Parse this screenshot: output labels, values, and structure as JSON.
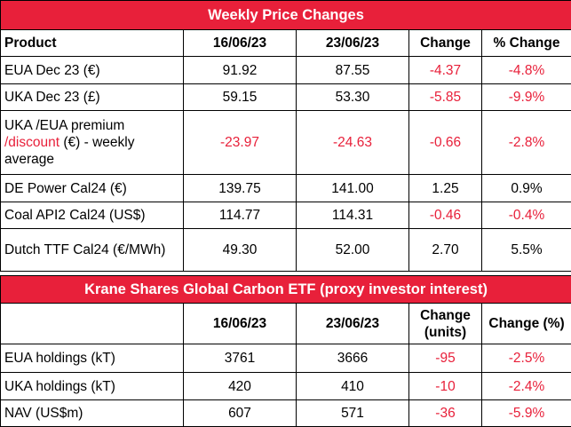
{
  "weekly": {
    "title": "Weekly Price Changes",
    "headers": [
      "Product",
      "16/06/23",
      "23/06/23",
      "Change",
      "% Change"
    ],
    "rows": [
      {
        "product": "EUA Dec 23 (€)",
        "d1": "91.92",
        "d2": "87.55",
        "change": "-4.37",
        "pct": "-4.8%"
      },
      {
        "product": "UKA Dec 23 (£)",
        "d1": "59.15",
        "d2": "53.30",
        "change": "-5.85",
        "pct": "-9.9%"
      },
      {
        "product_a": "UKA /EUA premium",
        "product_b": "/discount",
        "product_c": " (€) - weekly average",
        "d1": "-23.97",
        "d2": "-24.63",
        "change": "-0.66",
        "pct": "-2.8%"
      },
      {
        "product": "DE Power Cal24 (€)",
        "d1": "139.75",
        "d2": "141.00",
        "change": "1.25",
        "pct": "0.9%"
      },
      {
        "product": "Coal API2 Cal24 (US$)",
        "d1": "114.77",
        "d2": "114.31",
        "change": "-0.46",
        "pct": "-0.4%"
      },
      {
        "product": "Dutch TTF Cal24 (€/MWh)",
        "d1": "49.30",
        "d2": "52.00",
        "change": "2.70",
        "pct": "5.5%"
      }
    ]
  },
  "etf": {
    "title": "Krane Shares Global Carbon ETF (proxy investor interest)",
    "headers": [
      "",
      "16/06/23",
      "23/06/23",
      "Change (units)",
      "Change (%)"
    ],
    "rows": [
      {
        "product": "EUA holdings (kT)",
        "d1": "3761",
        "d2": "3666",
        "change": "-95",
        "pct": "-2.5%"
      },
      {
        "product": "UKA holdings (kT)",
        "d1": "420",
        "d2": "410",
        "change": "-10",
        "pct": "-2.4%"
      },
      {
        "product": "NAV (US$m)",
        "d1": "607",
        "d2": "571",
        "change": "-36",
        "pct": "-5.9%"
      }
    ]
  },
  "colors": {
    "accent": "#e8203a",
    "negative": "#e8203a"
  }
}
